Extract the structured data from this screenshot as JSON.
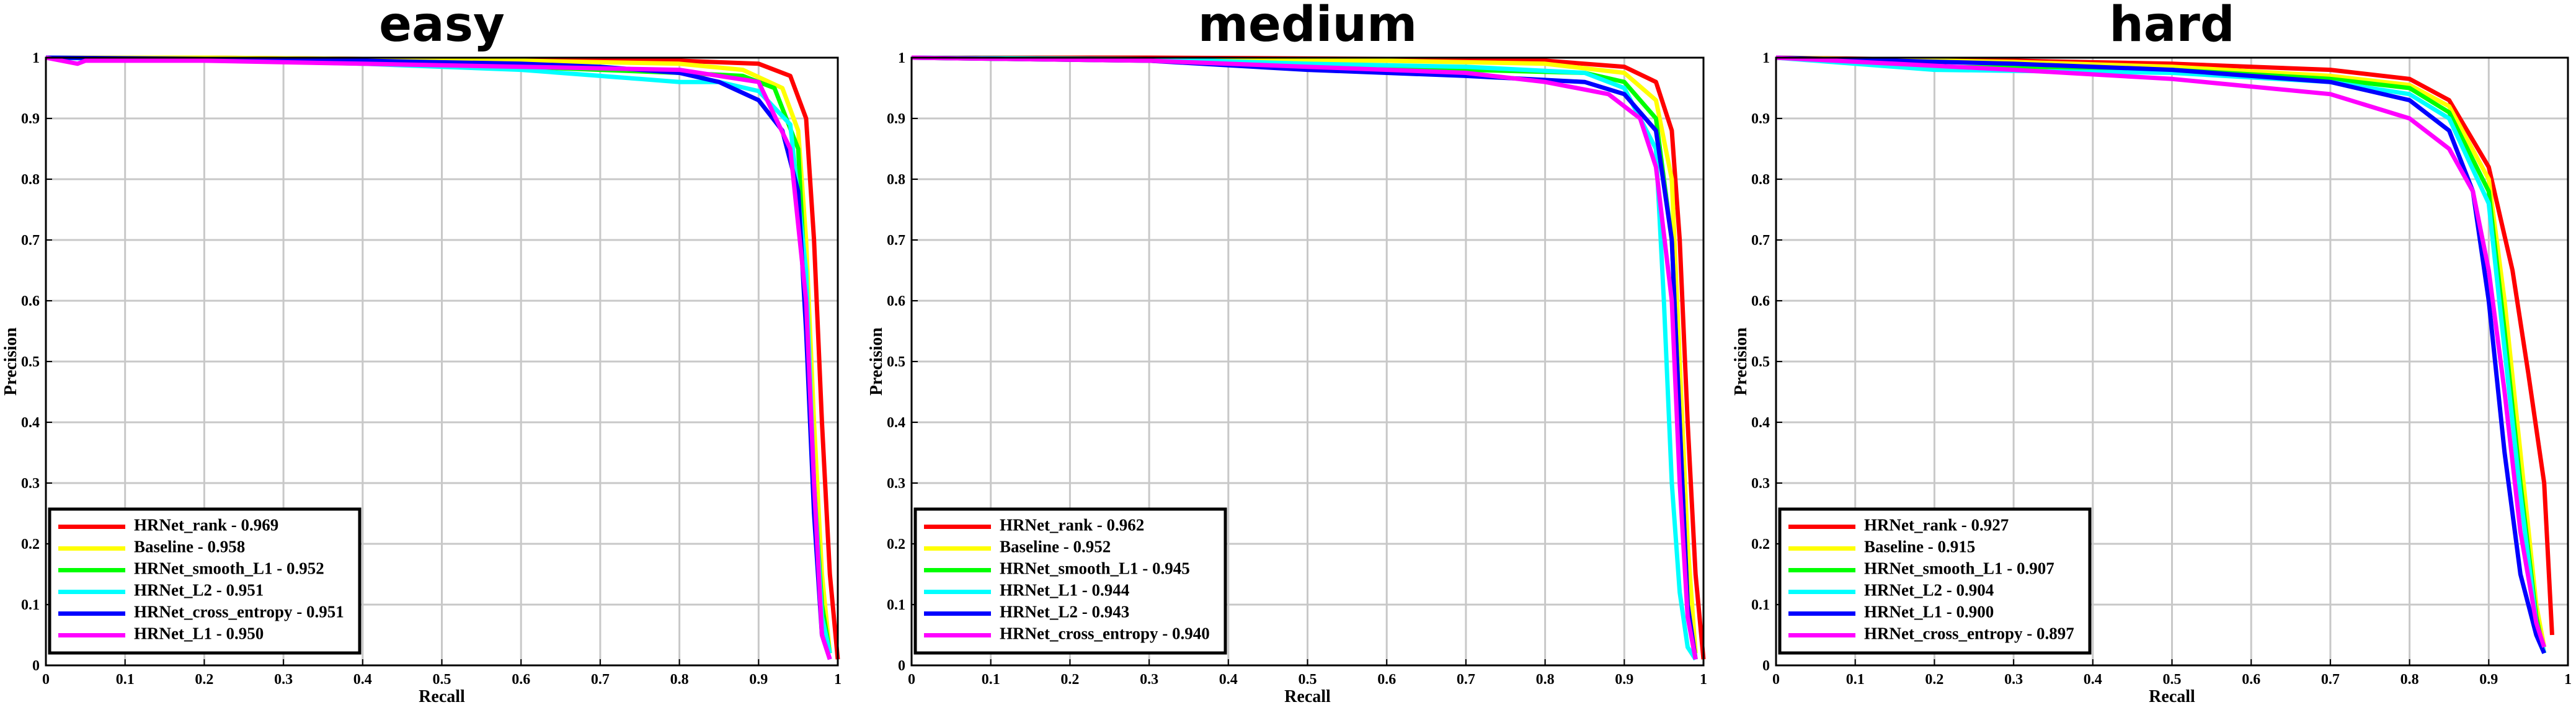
{
  "chart_data": [
    {
      "type": "line",
      "title": "easy",
      "x_label": "Recall",
      "y_label": "Precision",
      "xlim": [
        0,
        1
      ],
      "ylim": [
        0,
        1
      ],
      "xticks": [
        0,
        0.1,
        0.2,
        0.3,
        0.4,
        0.5,
        0.6,
        0.7,
        0.8,
        0.9,
        1
      ],
      "yticks": [
        0,
        0.1,
        0.2,
        0.3,
        0.4,
        0.5,
        0.6,
        0.7,
        0.8,
        0.9,
        1
      ],
      "grid": true,
      "legend": "lower left",
      "series": [
        {
          "name": "HRNet_rank - 0.969",
          "color": "#ff0000",
          "x": [
            0,
            0.2,
            0.4,
            0.6,
            0.8,
            0.9,
            0.94,
            0.96,
            0.97,
            0.98,
            0.99,
            1.0
          ],
          "values": [
            1,
            1,
            0.998,
            0.997,
            0.995,
            0.99,
            0.97,
            0.9,
            0.7,
            0.4,
            0.15,
            0.01
          ]
        },
        {
          "name": "Baseline - 0.958",
          "color": "#ffff00",
          "x": [
            0,
            0.2,
            0.4,
            0.6,
            0.8,
            0.88,
            0.93,
            0.95,
            0.96,
            0.97,
            0.98,
            0.99
          ],
          "values": [
            1,
            1,
            0.998,
            0.995,
            0.99,
            0.98,
            0.95,
            0.88,
            0.7,
            0.4,
            0.15,
            0.02
          ]
        },
        {
          "name": "HRNet_smooth_L1 - 0.952",
          "color": "#00ff00",
          "x": [
            0,
            0.2,
            0.4,
            0.6,
            0.7,
            0.8,
            0.88,
            0.92,
            0.95,
            0.96,
            0.97,
            0.98,
            0.99
          ],
          "values": [
            1,
            0.997,
            0.99,
            0.985,
            0.98,
            0.975,
            0.97,
            0.95,
            0.85,
            0.6,
            0.3,
            0.1,
            0.02
          ]
        },
        {
          "name": "HRNet_L2 - 0.951",
          "color": "#00ffff",
          "x": [
            0,
            0.2,
            0.4,
            0.6,
            0.7,
            0.75,
            0.8,
            0.85,
            0.9,
            0.94,
            0.96,
            0.97,
            0.98,
            0.99
          ],
          "values": [
            1,
            0.996,
            0.99,
            0.98,
            0.97,
            0.965,
            0.96,
            0.96,
            0.945,
            0.89,
            0.65,
            0.3,
            0.08,
            0.02
          ]
        },
        {
          "name": "HRNet_cross_entropy - 0.951",
          "color": "#0000ff",
          "x": [
            0,
            0.2,
            0.4,
            0.6,
            0.7,
            0.8,
            0.85,
            0.9,
            0.93,
            0.95,
            0.96,
            0.97,
            0.98,
            0.99
          ],
          "values": [
            1,
            0.998,
            0.995,
            0.99,
            0.985,
            0.975,
            0.96,
            0.93,
            0.88,
            0.78,
            0.55,
            0.25,
            0.05,
            0.01
          ]
        },
        {
          "name": "HRNet_L1 - 0.950",
          "color": "#ff00ff",
          "x": [
            0,
            0.04,
            0.05,
            0.2,
            0.4,
            0.6,
            0.8,
            0.9,
            0.94,
            0.96,
            0.97,
            0.98,
            0.99
          ],
          "values": [
            1,
            0.99,
            0.995,
            0.995,
            0.99,
            0.985,
            0.98,
            0.96,
            0.85,
            0.6,
            0.3,
            0.05,
            0.01
          ]
        }
      ]
    },
    {
      "type": "line",
      "title": "medium",
      "x_label": "Recall",
      "y_label": "Precision",
      "xlim": [
        0,
        1
      ],
      "ylim": [
        0,
        1
      ],
      "xticks": [
        0,
        0.1,
        0.2,
        0.3,
        0.4,
        0.5,
        0.6,
        0.7,
        0.8,
        0.9,
        1
      ],
      "yticks": [
        0,
        0.1,
        0.2,
        0.3,
        0.4,
        0.5,
        0.6,
        0.7,
        0.8,
        0.9,
        1
      ],
      "grid": true,
      "legend": "lower left",
      "series": [
        {
          "name": "HRNet_rank - 0.962",
          "color": "#ff0000",
          "x": [
            0,
            0.3,
            0.6,
            0.8,
            0.9,
            0.94,
            0.96,
            0.97,
            0.98,
            0.99,
            1.0
          ],
          "values": [
            1,
            1,
            0.998,
            0.995,
            0.985,
            0.96,
            0.88,
            0.7,
            0.4,
            0.15,
            0.01
          ]
        },
        {
          "name": "Baseline - 0.952",
          "color": "#ffff00",
          "x": [
            0,
            0.3,
            0.6,
            0.8,
            0.9,
            0.94,
            0.96,
            0.97,
            0.98,
            0.99
          ],
          "values": [
            1,
            0.998,
            0.995,
            0.99,
            0.975,
            0.93,
            0.8,
            0.5,
            0.2,
            0.02
          ]
        },
        {
          "name": "HRNet_smooth_L1 - 0.945",
          "color": "#00ff00",
          "x": [
            0,
            0.3,
            0.5,
            0.7,
            0.85,
            0.9,
            0.94,
            0.96,
            0.97,
            0.98,
            0.99
          ],
          "values": [
            1,
            0.995,
            0.985,
            0.98,
            0.975,
            0.96,
            0.9,
            0.7,
            0.4,
            0.1,
            0.01
          ]
        },
        {
          "name": "HRNet_L1 - 0.944",
          "color": "#00ffff",
          "x": [
            0,
            0.3,
            0.5,
            0.7,
            0.85,
            0.9,
            0.94,
            0.95,
            0.96,
            0.97,
            0.98,
            0.99
          ],
          "values": [
            1,
            0.998,
            0.99,
            0.985,
            0.975,
            0.95,
            0.85,
            0.6,
            0.3,
            0.12,
            0.03,
            0.01
          ]
        },
        {
          "name": "HRNet_L2 - 0.943",
          "color": "#0000ff",
          "x": [
            0,
            0.3,
            0.5,
            0.7,
            0.85,
            0.9,
            0.94,
            0.96,
            0.97,
            0.98,
            0.99
          ],
          "values": [
            1,
            0.995,
            0.98,
            0.97,
            0.96,
            0.94,
            0.88,
            0.7,
            0.4,
            0.1,
            0.01
          ]
        },
        {
          "name": "HRNet_cross_entropy - 0.940",
          "color": "#ff00ff",
          "x": [
            0,
            0.3,
            0.5,
            0.7,
            0.8,
            0.88,
            0.92,
            0.94,
            0.96,
            0.97,
            0.98,
            0.99
          ],
          "values": [
            1,
            0.995,
            0.985,
            0.975,
            0.96,
            0.94,
            0.9,
            0.82,
            0.6,
            0.3,
            0.08,
            0.01
          ]
        }
      ]
    },
    {
      "type": "line",
      "title": "hard",
      "x_label": "Recall",
      "y_label": "Precision",
      "xlim": [
        0,
        1
      ],
      "ylim": [
        0,
        1
      ],
      "xticks": [
        0,
        0.1,
        0.2,
        0.3,
        0.4,
        0.5,
        0.6,
        0.7,
        0.8,
        0.9,
        1
      ],
      "yticks": [
        0,
        0.1,
        0.2,
        0.3,
        0.4,
        0.5,
        0.6,
        0.7,
        0.8,
        0.9,
        1
      ],
      "grid": true,
      "legend": "lower left",
      "series": [
        {
          "name": "HRNet_rank - 0.927",
          "color": "#ff0000",
          "x": [
            0,
            0.3,
            0.5,
            0.7,
            0.8,
            0.85,
            0.9,
            0.93,
            0.95,
            0.97,
            0.98
          ],
          "values": [
            1,
            0.995,
            0.99,
            0.98,
            0.965,
            0.93,
            0.82,
            0.65,
            0.48,
            0.3,
            0.05
          ]
        },
        {
          "name": "Baseline - 0.915",
          "color": "#ffff00",
          "x": [
            0,
            0.3,
            0.5,
            0.7,
            0.8,
            0.85,
            0.9,
            0.92,
            0.94,
            0.96,
            0.97
          ],
          "values": [
            1,
            0.993,
            0.985,
            0.97,
            0.955,
            0.92,
            0.8,
            0.6,
            0.35,
            0.1,
            0.03
          ]
        },
        {
          "name": "HRNet_smooth_L1 - 0.907",
          "color": "#00ff00",
          "x": [
            0,
            0.2,
            0.5,
            0.7,
            0.8,
            0.85,
            0.9,
            0.92,
            0.94,
            0.96,
            0.97
          ],
          "values": [
            1,
            0.985,
            0.98,
            0.965,
            0.95,
            0.91,
            0.78,
            0.55,
            0.3,
            0.08,
            0.02
          ]
        },
        {
          "name": "HRNet_L2 - 0.904",
          "color": "#00ffff",
          "x": [
            0,
            0.2,
            0.5,
            0.7,
            0.8,
            0.85,
            0.9,
            0.92,
            0.94,
            0.96,
            0.97
          ],
          "values": [
            1,
            0.98,
            0.975,
            0.96,
            0.94,
            0.9,
            0.76,
            0.52,
            0.28,
            0.07,
            0.02
          ]
        },
        {
          "name": "HRNet_L1 - 0.900",
          "color": "#0000ff",
          "x": [
            0,
            0.3,
            0.5,
            0.7,
            0.8,
            0.85,
            0.88,
            0.9,
            0.92,
            0.94,
            0.96,
            0.97
          ],
          "values": [
            1,
            0.99,
            0.98,
            0.96,
            0.93,
            0.88,
            0.78,
            0.6,
            0.35,
            0.15,
            0.05,
            0.02
          ]
        },
        {
          "name": "HRNet_cross_entropy - 0.897",
          "color": "#ff00ff",
          "x": [
            0,
            0.3,
            0.5,
            0.7,
            0.8,
            0.85,
            0.88,
            0.9,
            0.92,
            0.94,
            0.96,
            0.97
          ],
          "values": [
            1,
            0.98,
            0.965,
            0.94,
            0.9,
            0.85,
            0.78,
            0.65,
            0.45,
            0.22,
            0.07,
            0.03
          ]
        }
      ]
    }
  ]
}
